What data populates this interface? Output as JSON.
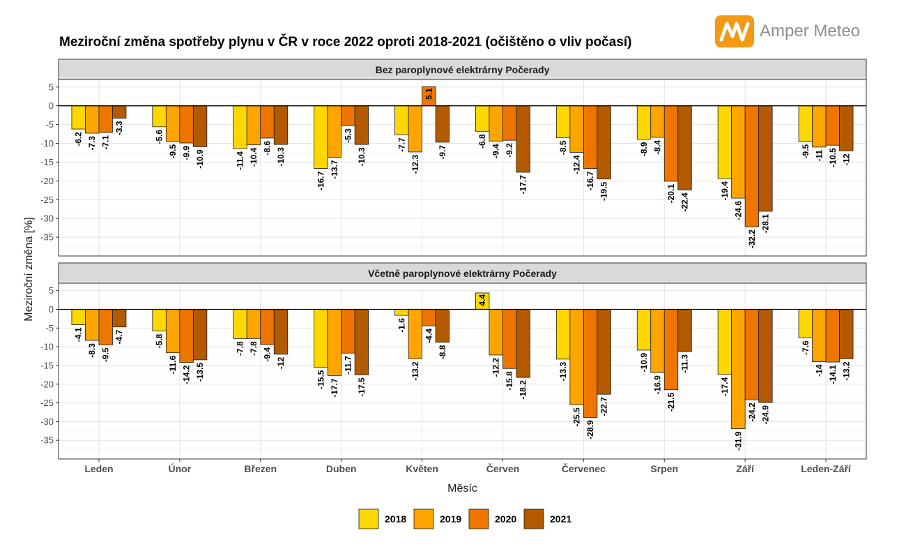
{
  "title": "Meziroční změna spotřeby plynu v ČR v roce 2022 oproti 2018-2021 (očištěno o vliv počasí)",
  "brand": {
    "name": "Amper Meteo",
    "icon": "amper-meteo-logo-icon"
  },
  "chart_data": {
    "type": "bar",
    "title": "Meziroční změna spotřeby plynu v ČR v roce 2022 oproti 2018-2021 (očištěno o vliv počasí)",
    "xlabel": "Měsíc",
    "ylabel": "Meziroční změna [%]",
    "ylim": [
      -40,
      7
    ],
    "yticks": [
      5,
      0,
      -5,
      -10,
      -15,
      -20,
      -25,
      -30,
      -35
    ],
    "grid": true,
    "legend_position": "bottom",
    "categories": [
      "Leden",
      "Únor",
      "Březen",
      "Duben",
      "Květen",
      "Červen",
      "Červenec",
      "Srpen",
      "Září",
      "Leden-Září"
    ],
    "series_names": [
      "2018",
      "2019",
      "2020",
      "2021"
    ],
    "colors": [
      "#ffd700",
      "#ffa500",
      "#ee7600",
      "#b35900"
    ],
    "panels": [
      {
        "title": "Bez paroplynové elektrárny Počerady",
        "series": [
          {
            "name": "2018",
            "values": [
              -6.2,
              -5.6,
              -11.4,
              -16.7,
              -7.7,
              -6.8,
              -8.5,
              -8.9,
              -19.4,
              -9.5
            ]
          },
          {
            "name": "2019",
            "values": [
              -7.3,
              -9.5,
              -10.4,
              -13.7,
              -12.3,
              -9.4,
              -12.4,
              -8.4,
              -24.6,
              -11
            ]
          },
          {
            "name": "2020",
            "values": [
              -7.1,
              -9.9,
              -8.6,
              -5.3,
              5.1,
              -9.2,
              -16.7,
              -20.1,
              -32.2,
              -10.5
            ]
          },
          {
            "name": "2021",
            "values": [
              -3.3,
              -10.9,
              -10.3,
              -10.3,
              -9.7,
              -17.7,
              -19.5,
              -22.4,
              -28.1,
              -12
            ]
          }
        ]
      },
      {
        "title": "Včetně paroplynové elektrárny Počerady",
        "series": [
          {
            "name": "2018",
            "values": [
              -4.1,
              -5.8,
              -7.8,
              -15.5,
              -1.6,
              4.4,
              -13.3,
              -10.9,
              -17.4,
              -7.6
            ]
          },
          {
            "name": "2019",
            "values": [
              -8.3,
              -11.6,
              -7.8,
              -17.7,
              -13.2,
              -12.2,
              -25.5,
              -16.9,
              -31.9,
              -14
            ]
          },
          {
            "name": "2020",
            "values": [
              -9.5,
              -14.2,
              -9.4,
              -11.7,
              -4.4,
              -15.8,
              -28.9,
              -21.5,
              -24.2,
              -14.1
            ]
          },
          {
            "name": "2021",
            "values": [
              -4.7,
              -13.5,
              -12,
              -17.5,
              -8.8,
              -18.2,
              -22.7,
              -11.3,
              -24.9,
              -13.2
            ]
          }
        ]
      }
    ]
  }
}
